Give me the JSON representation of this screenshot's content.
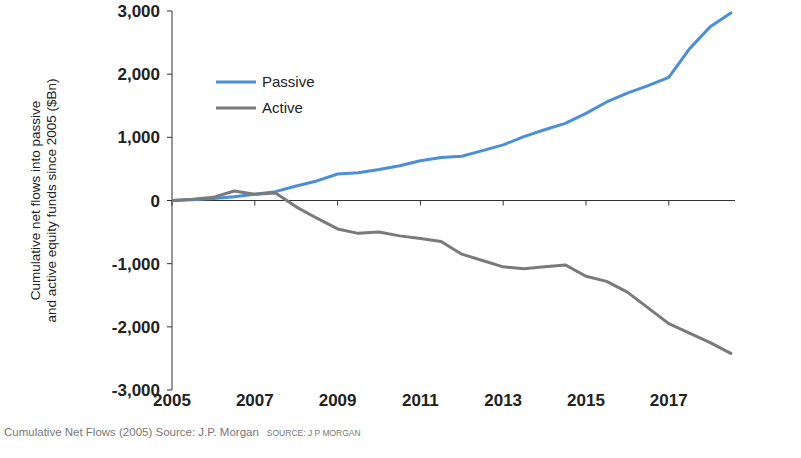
{
  "chart_data": {
    "type": "line",
    "y_label": "Cumulative net flows into passive and active equity funds since 2005 ($Bn)",
    "annotations": [
      "Cumulative Net Flows (2005) Source: J.P. Morgan",
      "SOURCE: J P MORGAN"
    ],
    "x": [
      2005,
      2005.5,
      2006,
      2006.5,
      2007,
      2007.5,
      2008,
      2008.5,
      2009,
      2009.5,
      2010,
      2010.5,
      2011,
      2011.5,
      2012,
      2012.5,
      2013,
      2013.5,
      2014,
      2014.5,
      2015,
      2015.5,
      2016,
      2016.5,
      2017,
      2017.5,
      2018,
      2018.5
    ],
    "series": [
      {
        "name": "Passive",
        "color": "#4a8fda",
        "values": [
          0,
          10,
          30,
          60,
          100,
          140,
          230,
          310,
          420,
          440,
          490,
          550,
          630,
          680,
          700,
          790,
          880,
          1010,
          1120,
          1220,
          1380,
          1560,
          1700,
          1820,
          1950,
          2400,
          2750,
          2970
        ]
      },
      {
        "name": "Active",
        "color": "#7a7a7a",
        "values": [
          0,
          20,
          50,
          150,
          100,
          120,
          -100,
          -280,
          -450,
          -520,
          -500,
          -560,
          -600,
          -650,
          -850,
          -950,
          -1050,
          -1080,
          -1050,
          -1020,
          -1200,
          -1280,
          -1450,
          -1700,
          -1950,
          -2100,
          -2250,
          -2420
        ]
      }
    ],
    "xlim": [
      2005,
      2018.6
    ],
    "xticks": [
      2005,
      2007,
      2009,
      2011,
      2013,
      2015,
      2017
    ],
    "ylim": [
      -3000,
      3000
    ],
    "yticks": [
      {
        "value": -3000,
        "label": "-3,000"
      },
      {
        "value": -2000,
        "label": "-2,000"
      },
      {
        "value": -1000,
        "label": "-1,000"
      },
      0,
      {
        "value": 1000,
        "label": "1,000"
      },
      {
        "value": 2000,
        "label": "2,000"
      },
      {
        "value": 3000,
        "label": "3,000"
      }
    ],
    "grid": false,
    "legend": "upper left"
  }
}
